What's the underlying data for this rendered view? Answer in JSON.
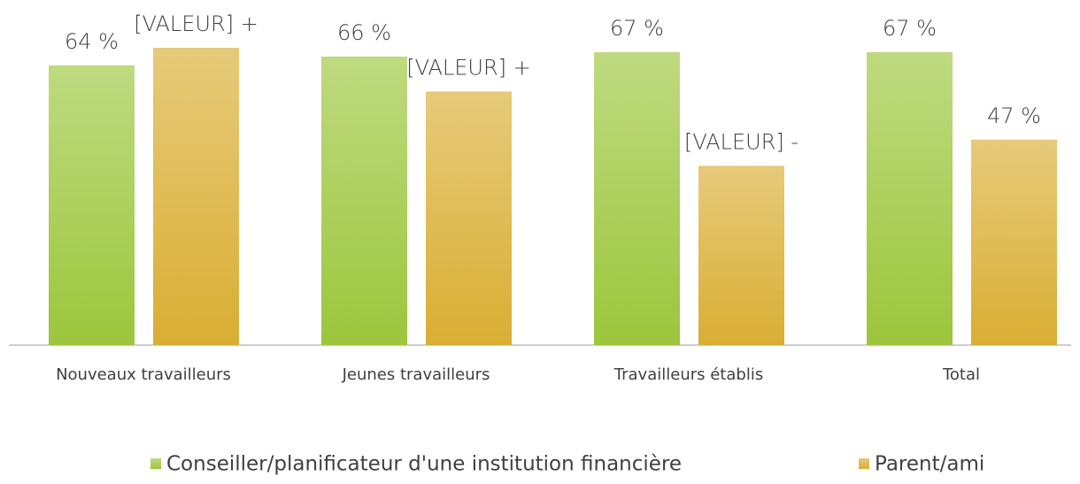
{
  "chart_data": {
    "type": "bar",
    "categories": [
      "Nouveaux travailleurs",
      "Jeunes travailleurs",
      "Travailleurs établis",
      "Total"
    ],
    "series": [
      {
        "name": "Conseiller/planificateur d'une institution financière",
        "color": "#9cc63c",
        "values": [
          64,
          66,
          67,
          67
        ],
        "value_labels": [
          "64 %",
          "66 %",
          "67 %",
          "67 %"
        ]
      },
      {
        "name": "Parent/ami",
        "color": "#d9ae33",
        "values": [
          68,
          58,
          41,
          47
        ],
        "value_labels": [
          "[VALEUR] +",
          "[VALEUR] +",
          "[VALEUR] -",
          "47 %"
        ]
      }
    ],
    "legend": "bottom"
  }
}
